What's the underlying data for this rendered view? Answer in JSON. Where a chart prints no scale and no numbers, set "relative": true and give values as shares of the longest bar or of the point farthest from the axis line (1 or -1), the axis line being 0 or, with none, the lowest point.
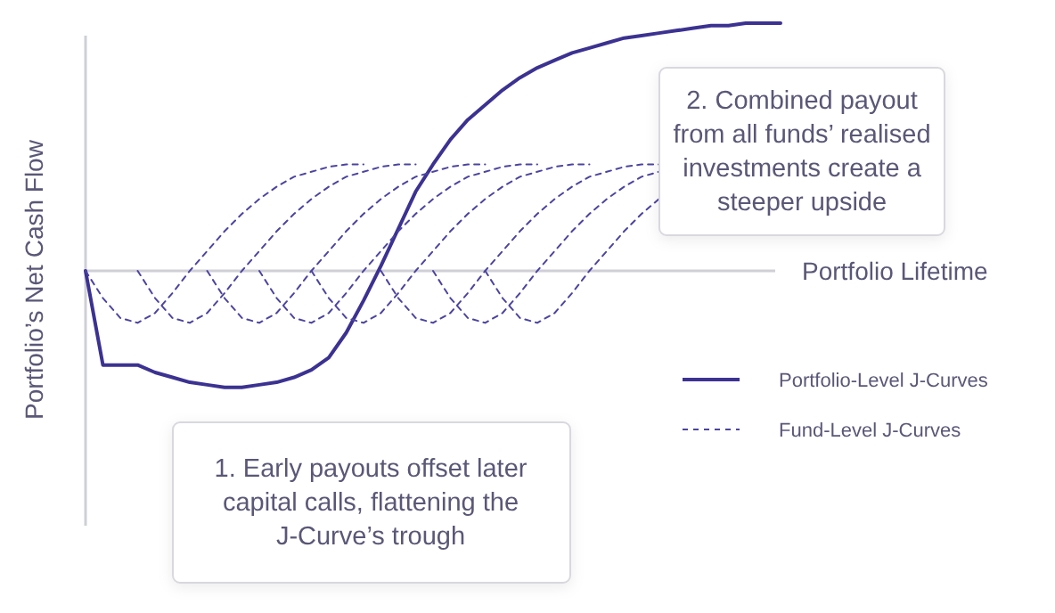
{
  "chart_data": {
    "type": "line",
    "relative": true,
    "ylabel": "Portfolio’s Net Cash Flow",
    "xlabel": "Portfolio Lifetime",
    "legend": "right",
    "annotations": [
      "2. Combined payout\nfrom all funds’ realised\ninvestments create a\nsteeper upside",
      "1. Early payouts offset later\ncapital calls, flattening the\nJ-Curve’s trough"
    ],
    "categories": [
      null,
      null,
      null,
      null,
      null,
      null,
      null,
      null,
      null,
      null,
      null,
      null,
      null,
      null,
      null,
      null,
      null,
      null,
      null,
      null,
      null,
      null,
      null,
      null,
      null,
      null,
      null,
      null,
      null,
      null,
      null,
      null,
      null,
      null,
      null,
      null,
      null,
      null,
      null,
      null,
      null
    ],
    "series": [
      {
        "name": "Portfolio-Level J-Curves",
        "color": "#3b3291",
        "line_style": "solid",
        "values": [
          0,
          -0.38,
          -0.38,
          -0.38,
          -0.41,
          -0.43,
          -0.45,
          -0.46,
          -0.47,
          -0.47,
          -0.46,
          -0.45,
          -0.43,
          -0.4,
          -0.35,
          -0.25,
          -0.12,
          0.02,
          0.17,
          0.32,
          0.43,
          0.53,
          0.61,
          0.67,
          0.73,
          0.78,
          0.82,
          0.85,
          0.88,
          0.9,
          0.92,
          0.94,
          0.95,
          0.96,
          0.97,
          0.98,
          0.99,
          0.99,
          1,
          1,
          1
        ]
      },
      {
        "name": "Fund-Level J-Curves",
        "color": "#4b44a0",
        "line_style": "dashed",
        "values": [
          0,
          -0.11,
          -0.19,
          -0.21,
          -0.17,
          -0.09,
          0,
          0.08,
          0.16,
          0.23,
          0.29,
          0.34,
          0.38,
          0.4,
          0.42,
          0.43,
          0.43,
          null,
          null,
          null,
          null,
          null,
          null,
          null,
          null,
          null,
          null,
          null,
          null,
          null,
          null,
          null,
          null,
          null,
          null,
          null,
          null,
          null,
          null,
          null,
          null
        ]
      },
      {
        "color": "#4b44a0",
        "line_style": "dashed",
        "values": [
          null,
          null,
          null,
          0,
          -0.11,
          -0.19,
          -0.21,
          -0.17,
          -0.09,
          0,
          0.08,
          0.16,
          0.23,
          0.29,
          0.34,
          0.38,
          0.4,
          0.42,
          0.43,
          0.43,
          null,
          null,
          null,
          null,
          null,
          null,
          null,
          null,
          null,
          null,
          null,
          null,
          null,
          null,
          null,
          null,
          null,
          null,
          null,
          null,
          null
        ]
      },
      {
        "color": "#4b44a0",
        "line_style": "dashed",
        "values": [
          null,
          null,
          null,
          null,
          null,
          null,
          null,
          0,
          -0.11,
          -0.19,
          -0.21,
          -0.17,
          -0.09,
          0,
          0.08,
          0.16,
          0.23,
          0.29,
          0.34,
          0.38,
          0.4,
          0.42,
          0.43,
          0.43,
          null,
          null,
          null,
          null,
          null,
          null,
          null,
          null,
          null,
          null,
          null,
          null,
          null,
          null,
          null,
          null,
          null
        ]
      },
      {
        "color": "#4b44a0",
        "line_style": "dashed",
        "values": [
          null,
          null,
          null,
          null,
          null,
          null,
          null,
          null,
          null,
          null,
          0,
          -0.11,
          -0.19,
          -0.21,
          -0.17,
          -0.09,
          0,
          0.08,
          0.16,
          0.23,
          0.29,
          0.34,
          0.38,
          0.4,
          0.42,
          0.43,
          0.43,
          null,
          null,
          null,
          null,
          null,
          null,
          null,
          null,
          null,
          null,
          null,
          null,
          null,
          null
        ]
      },
      {
        "color": "#4b44a0",
        "line_style": "dashed",
        "values": [
          null,
          null,
          null,
          null,
          null,
          null,
          null,
          null,
          null,
          null,
          null,
          null,
          null,
          0,
          -0.11,
          -0.19,
          -0.21,
          -0.17,
          -0.09,
          0,
          0.08,
          0.16,
          0.23,
          0.29,
          0.34,
          0.38,
          0.4,
          0.42,
          0.43,
          0.43,
          null,
          null,
          null,
          null,
          null,
          null,
          null,
          null,
          null,
          null,
          null
        ]
      },
      {
        "color": "#4b44a0",
        "line_style": "dashed",
        "values": [
          null,
          null,
          null,
          null,
          null,
          null,
          null,
          null,
          null,
          null,
          null,
          null,
          null,
          null,
          null,
          null,
          null,
          0,
          -0.11,
          -0.19,
          -0.21,
          -0.17,
          -0.09,
          0,
          0.08,
          0.16,
          0.23,
          0.29,
          0.34,
          0.38,
          0.4,
          0.42,
          0.43,
          0.43,
          null,
          null,
          null,
          null,
          null,
          null,
          null
        ]
      },
      {
        "color": "#4b44a0",
        "line_style": "dashed",
        "values": [
          null,
          null,
          null,
          null,
          null,
          null,
          null,
          null,
          null,
          null,
          null,
          null,
          null,
          null,
          null,
          null,
          null,
          null,
          null,
          null,
          0,
          -0.11,
          -0.19,
          -0.21,
          -0.17,
          -0.09,
          0,
          0.08,
          0.16,
          0.23,
          0.29,
          0.34,
          0.38,
          0.4,
          null,
          null,
          null,
          null,
          null,
          null,
          null
        ]
      },
      {
        "color": "#4b44a0",
        "line_style": "dashed",
        "values": [
          null,
          null,
          null,
          null,
          null,
          null,
          null,
          null,
          null,
          null,
          null,
          null,
          null,
          null,
          null,
          null,
          null,
          null,
          null,
          null,
          null,
          null,
          null,
          0,
          -0.11,
          -0.19,
          -0.21,
          -0.17,
          -0.09,
          0,
          0.08,
          0.16,
          0.23,
          0.29,
          null,
          null,
          null,
          null,
          null,
          null,
          null
        ]
      }
    ]
  }
}
